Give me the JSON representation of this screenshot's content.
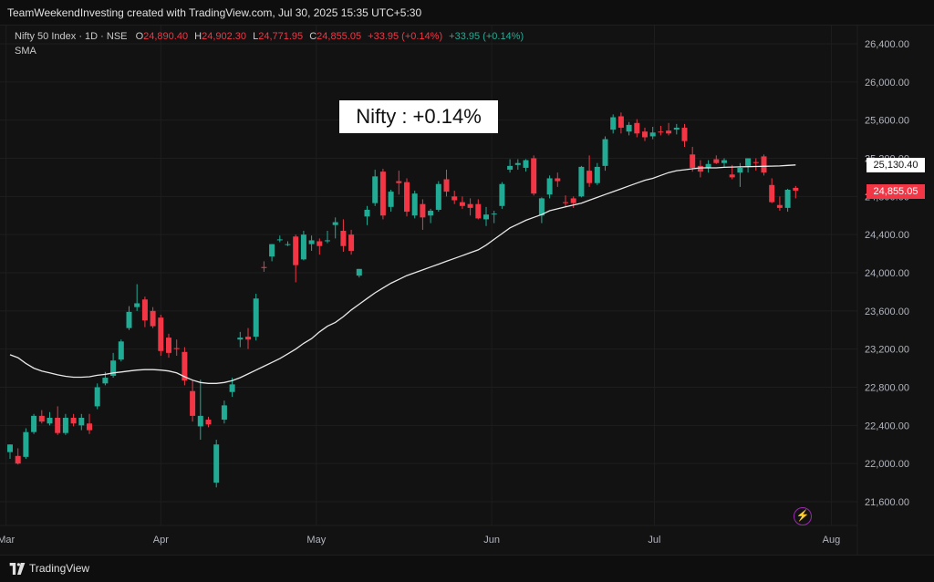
{
  "header": {
    "caption": "TeamWeekendInvesting created with TradingView.com, Jul 30, 2025 15:35 UTC+5:30"
  },
  "legend": {
    "symbol": "Nifty 50 Index · 1D · NSE",
    "open_label": "O",
    "open": "24,890.40",
    "high_label": "H",
    "high": "24,902.30",
    "low_label": "L",
    "low": "24,771.95",
    "close_label": "C",
    "close": "24,855.05",
    "change": "+33.95 (+0.14%)",
    "change2": "+33.95 (+0.14%)",
    "indicator": "SMA"
  },
  "annotation": {
    "text": "Nifty : +0.14%"
  },
  "price_tags": {
    "sma": "25,130.40",
    "last": "24,855.05",
    "sma_color": "#ffffff",
    "last_color": "#f23645"
  },
  "footer": {
    "brand": "TradingView"
  },
  "colors": {
    "up": "#22ab94",
    "down": "#f23645",
    "sma": "#e8e8e8",
    "grid": "#1e1e1e",
    "background": "#121212",
    "axis_text": "#b2b5be"
  },
  "icons": {
    "flash": "lightning-bolt-icon",
    "logo": "tradingview-logo-icon"
  },
  "chart_data": {
    "type": "candlestick",
    "title": "",
    "xlabel": "",
    "ylabel": "",
    "ylim": [
      21400,
      26600
    ],
    "y_ticks": [
      "21,600.00",
      "22,000.00",
      "22,400.00",
      "22,800.00",
      "23,200.00",
      "23,600.00",
      "24,000.00",
      "24,400.00",
      "24,800.00",
      "25,200.00",
      "25,600.00",
      "26,000.00",
      "26,400.00"
    ],
    "y_tick_values": [
      21600,
      22000,
      22400,
      22800,
      23200,
      23600,
      24000,
      24400,
      24800,
      25200,
      25600,
      26000,
      26400
    ],
    "x_ticks": [
      {
        "label": "Mar",
        "index": -0.5
      },
      {
        "label": "Apr",
        "index": 19
      },
      {
        "label": "May",
        "index": 38.6
      },
      {
        "label": "Jun",
        "index": 60.7
      },
      {
        "label": "Jul",
        "index": 81.2
      },
      {
        "label": "Aug",
        "index": 103.5
      }
    ],
    "series": [
      {
        "name": "Nifty 50 Index",
        "ohlc": [
          [
            22120,
            22200,
            22050,
            22200
          ],
          [
            22080,
            22160,
            21990,
            22000
          ],
          [
            22070,
            22370,
            22050,
            22330
          ],
          [
            22330,
            22520,
            22310,
            22500
          ],
          [
            22500,
            22560,
            22420,
            22440
          ],
          [
            22420,
            22540,
            22400,
            22480
          ],
          [
            22480,
            22600,
            22300,
            22320
          ],
          [
            22320,
            22520,
            22300,
            22480
          ],
          [
            22480,
            22520,
            22390,
            22420
          ],
          [
            22400,
            22520,
            22350,
            22480
          ],
          [
            22420,
            22520,
            22310,
            22350
          ],
          [
            22600,
            22840,
            22570,
            22800
          ],
          [
            22840,
            22960,
            22820,
            22900
          ],
          [
            22920,
            23160,
            22900,
            23080
          ],
          [
            23090,
            23300,
            23070,
            23280
          ],
          [
            23420,
            23650,
            23400,
            23590
          ],
          [
            23640,
            23880,
            23600,
            23680
          ],
          [
            23720,
            23750,
            23430,
            23500
          ],
          [
            23600,
            23640,
            23420,
            23440
          ],
          [
            23530,
            23560,
            23130,
            23180
          ],
          [
            23320,
            23360,
            23110,
            23160
          ],
          [
            23210,
            23300,
            23130,
            23200
          ],
          [
            23170,
            23220,
            22820,
            22870
          ],
          [
            22760,
            22880,
            22440,
            22500
          ],
          [
            22390,
            22880,
            22250,
            22500
          ],
          [
            22460,
            22490,
            22380,
            22410
          ],
          [
            21800,
            22250,
            21750,
            22200
          ],
          [
            22460,
            22660,
            22420,
            22610
          ],
          [
            22750,
            22900,
            22700,
            22830
          ],
          [
            23300,
            23380,
            23220,
            23320
          ],
          [
            23330,
            23420,
            23200,
            23300
          ],
          [
            23330,
            23780,
            23290,
            23730
          ],
          [
            24060,
            24120,
            24010,
            24050
          ],
          [
            24170,
            24300,
            24120,
            24300
          ],
          [
            24340,
            24390,
            24320,
            24350
          ],
          [
            24300,
            24330,
            24280,
            24300
          ],
          [
            24380,
            24400,
            23900,
            24080
          ],
          [
            24140,
            24440,
            24130,
            24400
          ],
          [
            24300,
            24390,
            24230,
            24340
          ],
          [
            24330,
            24360,
            24190,
            24280
          ],
          [
            24330,
            24440,
            24310,
            24340
          ],
          [
            24500,
            24580,
            24360,
            24530
          ],
          [
            24440,
            24560,
            24220,
            24280
          ],
          [
            24400,
            24450,
            24190,
            24230
          ],
          [
            23970,
            24040,
            23950,
            24040
          ],
          [
            24590,
            24700,
            24500,
            24660
          ],
          [
            24730,
            25080,
            24700,
            25010
          ],
          [
            25060,
            25090,
            24560,
            24600
          ],
          [
            24690,
            24870,
            24640,
            24850
          ],
          [
            24960,
            25070,
            24820,
            24940
          ],
          [
            24950,
            24990,
            24590,
            24640
          ],
          [
            24600,
            24860,
            24570,
            24830
          ],
          [
            24720,
            24770,
            24450,
            24580
          ],
          [
            24600,
            24670,
            24520,
            24650
          ],
          [
            24660,
            24960,
            24640,
            24930
          ],
          [
            24980,
            25080,
            24800,
            24850
          ],
          [
            24800,
            24860,
            24720,
            24760
          ],
          [
            24740,
            24800,
            24670,
            24700
          ],
          [
            24720,
            24780,
            24600,
            24680
          ],
          [
            24720,
            24770,
            24560,
            24570
          ],
          [
            24560,
            24690,
            24490,
            24610
          ],
          [
            24620,
            24650,
            24520,
            24620
          ],
          [
            24700,
            24950,
            24670,
            24930
          ],
          [
            25080,
            25190,
            25050,
            25120
          ],
          [
            25130,
            25190,
            25080,
            25150
          ],
          [
            25100,
            25190,
            25060,
            25180
          ],
          [
            25200,
            25230,
            24810,
            24830
          ],
          [
            24600,
            24790,
            24520,
            24780
          ],
          [
            24820,
            25020,
            24780,
            24990
          ],
          [
            24990,
            25050,
            24900,
            24960
          ],
          [
            24740,
            24810,
            24690,
            24730
          ],
          [
            24780,
            24800,
            24680,
            24730
          ],
          [
            24800,
            25120,
            24790,
            25110
          ],
          [
            25070,
            25230,
            24900,
            24940
          ],
          [
            24940,
            25150,
            24920,
            25110
          ],
          [
            25120,
            25430,
            25070,
            25400
          ],
          [
            25500,
            25660,
            25460,
            25630
          ],
          [
            25640,
            25680,
            25460,
            25520
          ],
          [
            25480,
            25580,
            25440,
            25550
          ],
          [
            25570,
            25610,
            25420,
            25460
          ],
          [
            25480,
            25520,
            25380,
            25420
          ],
          [
            25430,
            25530,
            25400,
            25470
          ],
          [
            25480,
            25540,
            25440,
            25470
          ],
          [
            25490,
            25570,
            25440,
            25460
          ],
          [
            25500,
            25560,
            25450,
            25520
          ],
          [
            25520,
            25560,
            25320,
            25380
          ],
          [
            25240,
            25320,
            25060,
            25100
          ],
          [
            25120,
            25180,
            25000,
            25060
          ],
          [
            25100,
            25180,
            25050,
            25140
          ],
          [
            25190,
            25230,
            25140,
            25150
          ],
          [
            25150,
            25200,
            25110,
            25180
          ],
          [
            25030,
            25130,
            24980,
            25000
          ],
          [
            25050,
            25150,
            24900,
            25100
          ],
          [
            25120,
            25200,
            25050,
            25200
          ],
          [
            25160,
            25200,
            25070,
            25150
          ],
          [
            25220,
            25240,
            25020,
            25050
          ],
          [
            24920,
            24990,
            24730,
            24740
          ],
          [
            24710,
            24800,
            24650,
            24680
          ],
          [
            24680,
            24880,
            24640,
            24870
          ],
          [
            24890,
            24910,
            24780,
            24860
          ]
        ]
      },
      {
        "name": "SMA",
        "values": [
          23140,
          23110,
          23050,
          23000,
          22970,
          22950,
          22930,
          22915,
          22905,
          22905,
          22910,
          22925,
          22935,
          22950,
          22960,
          22970,
          22980,
          22985,
          22985,
          22980,
          22970,
          22950,
          22910,
          22875,
          22850,
          22840,
          22840,
          22850,
          22870,
          22900,
          22940,
          22980,
          23020,
          23060,
          23100,
          23150,
          23200,
          23260,
          23310,
          23380,
          23440,
          23480,
          23540,
          23610,
          23670,
          23730,
          23790,
          23840,
          23890,
          23930,
          23970,
          24000,
          24030,
          24060,
          24090,
          24120,
          24150,
          24180,
          24210,
          24240,
          24290,
          24350,
          24410,
          24470,
          24510,
          24550,
          24580,
          24610,
          24650,
          24670,
          24690,
          24710,
          24730,
          24760,
          24790,
          24820,
          24850,
          24880,
          24910,
          24940,
          24970,
          24990,
          25020,
          25050,
          25070,
          25080,
          25090,
          25100,
          25100,
          25100,
          25105,
          25108,
          25110,
          25112,
          25114,
          25116,
          25118,
          25120,
          25125,
          25130
        ]
      }
    ],
    "grid": true,
    "legend_position": "top-left"
  }
}
